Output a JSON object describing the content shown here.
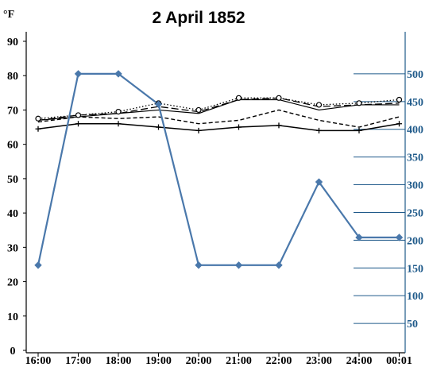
{
  "chart_data": {
    "type": "line",
    "title": "2 April 1852",
    "left_axis_unit": "°F",
    "x": [
      "16:00",
      "17:00",
      "18:00",
      "19:00",
      "20:00",
      "21:00",
      "22:00",
      "23:00",
      "24:00",
      "00:01"
    ],
    "left_ylim": [
      0,
      90
    ],
    "left_ticks": [
      0,
      10,
      20,
      30,
      40,
      50,
      60,
      70,
      80,
      90
    ],
    "right_ylim": [
      0,
      550
    ],
    "right_ticks": [
      50,
      100,
      150,
      200,
      250,
      300,
      350,
      400,
      450,
      500
    ],
    "grid": false,
    "series": [
      {
        "axis": "left",
        "style": "dotted-circle",
        "color": "#000000",
        "values": [
          67.5,
          68.5,
          69.5,
          72,
          70,
          73.5,
          73.5,
          71.5,
          72,
          73
        ]
      },
      {
        "axis": "left",
        "style": "solid-plain",
        "color": "#000000",
        "values": [
          67,
          68,
          69,
          70,
          69,
          73,
          73,
          70,
          71.5,
          71.5
        ]
      },
      {
        "axis": "left",
        "style": "long-dash",
        "color": "#000000",
        "values": [
          67,
          68.5,
          69,
          71,
          69.5,
          73,
          73.5,
          71,
          71.5,
          72
        ]
      },
      {
        "axis": "left",
        "style": "short-dash",
        "color": "#000000",
        "values": [
          66.5,
          68,
          67.5,
          68,
          66,
          67,
          70,
          67,
          65,
          68
        ]
      },
      {
        "axis": "left",
        "style": "solid-plus",
        "color": "#000000",
        "values": [
          64.5,
          66,
          66,
          65,
          64,
          65,
          65.5,
          64,
          64,
          66
        ]
      },
      {
        "axis": "right",
        "style": "solid-diamond",
        "color": "#4a78ab",
        "values": [
          155,
          500,
          500,
          445,
          155,
          155,
          155,
          305,
          205,
          205
        ]
      }
    ]
  }
}
